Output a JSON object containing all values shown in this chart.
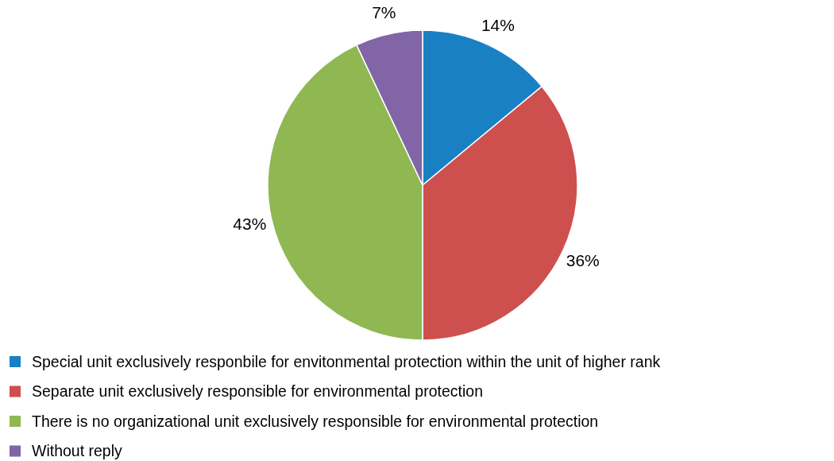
{
  "chart_data": {
    "type": "pie",
    "categories": [
      "Special unit exclusively responbile for envitonmental protection within the unit of higher rank",
      "Separate unit exclusively responsible for environmental protection",
      "There is no organizational unit exclusively responsible for environmental protection",
      "Without reply"
    ],
    "values": [
      14,
      36,
      43,
      7
    ],
    "colors": [
      "#1a80c4",
      "#cd504e",
      "#8fb853",
      "#8165a6"
    ],
    "value_labels": [
      "14%",
      "36%",
      "43%",
      "7%"
    ],
    "legend": "bottom"
  }
}
